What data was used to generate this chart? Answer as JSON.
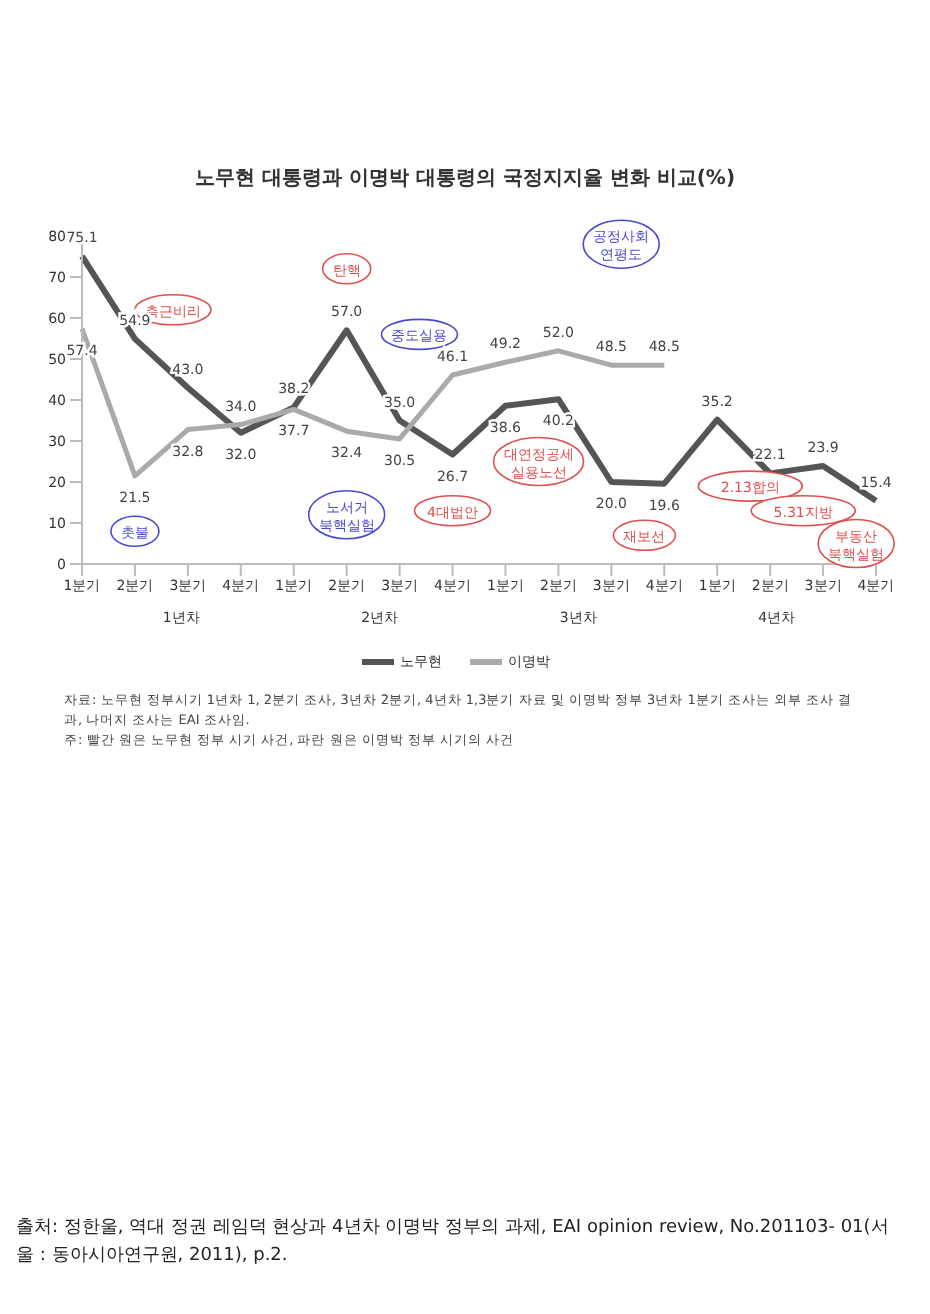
{
  "chart_data": {
    "type": "line",
    "title": "노무현 대통령과 이명박 대통령의 국정지지율 변화 비교(%)",
    "categories": [
      "1분기",
      "2분기",
      "3분기",
      "4분기",
      "1분기",
      "2분기",
      "3분기",
      "4분기",
      "1분기",
      "2분기",
      "3분기",
      "4분기",
      "1분기",
      "2분기",
      "3분기",
      "4분기"
    ],
    "series": [
      {
        "name": "노무현",
        "color": "#555555",
        "values": [
          75.1,
          54.9,
          43.0,
          32.0,
          38.2,
          57.0,
          35.0,
          26.7,
          38.6,
          40.2,
          20.0,
          19.6,
          35.2,
          22.1,
          23.9,
          15.4
        ],
        "value_labels": [
          "75.1",
          "54.9",
          "43.0",
          "32.0",
          "38.2",
          "57.0",
          "35.0",
          "26.7",
          "38.6",
          "40.2",
          "20.0",
          "19.6",
          "35.2",
          "22.1",
          "23.9",
          "15.4"
        ]
      },
      {
        "name": "이명박",
        "color": "#aaaaaa",
        "values": [
          57.4,
          21.5,
          32.8,
          34.0,
          37.7,
          32.4,
          30.5,
          46.1,
          49.2,
          52.0,
          48.5,
          48.5,
          null,
          null,
          null,
          null
        ],
        "value_labels": [
          "57.4",
          "21.5",
          "32.8",
          "34.0",
          "37.7",
          "32.4",
          "30.5",
          "46.1",
          "49.2",
          "52.0",
          "48.5",
          "48.5",
          null,
          null,
          null,
          null
        ]
      }
    ],
    "ylim": [
      0,
      80
    ],
    "yticks": [
      0,
      10,
      20,
      30,
      40,
      50,
      60,
      70,
      80
    ],
    "grid": false,
    "legend": "bottom",
    "marker": "none",
    "line_style": "solid",
    "annotations": [
      "측근비리",
      "촛불",
      "탄핵",
      "노서거 북핵실험",
      "중도실용",
      "4대법안",
      "대연정공세 실용노선",
      "공정사회 연평도",
      "재보선",
      "2.13합의",
      "5.31지방",
      "부동산 북핵실험",
      "1년차",
      "2년차",
      "3년차",
      "4년차",
      "자료: 노무현 정부시기 1년차 1, 2분기 조사, 3년차 2분기, 4년차 1,3분기 자료 및 이명박 정부 3년차 1분기 조사는 외부 조사 결과, 나머지 조사는 EAI 조사임.",
      "주: 빨간 원은 노무현 정부 시기 사건, 파란 원은 이명박 정부 시기의 사건",
      "출처: 정한울, 역대 정권 레임덕 현상과 4년차 이명박 정부의 과제, EAI opinion review, No.201103- 01(서울 : 동아시아연구원, 2011), p.2."
    ]
  }
}
